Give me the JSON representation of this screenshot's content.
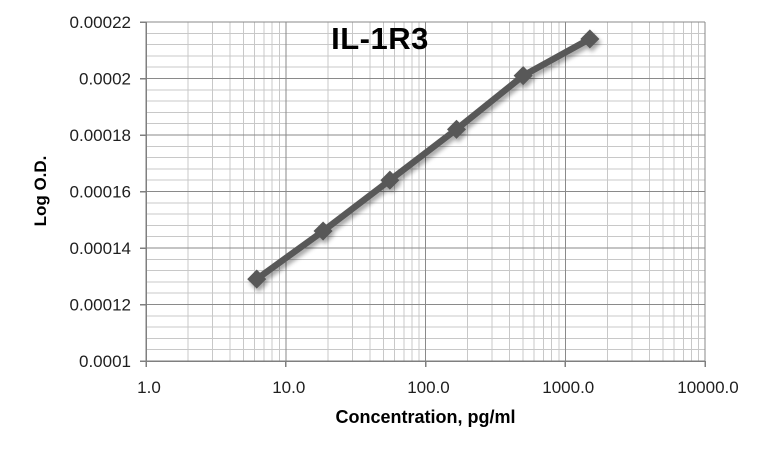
{
  "chart_data": {
    "type": "line",
    "title": "IL-1R3",
    "xlabel": "Concentration, pg/ml",
    "ylabel": "Log O.D.",
    "x_scale": "log",
    "y_scale": "linear",
    "xlim": [
      1.0,
      10000.0
    ],
    "ylim": [
      0.0001,
      0.00022
    ],
    "x_ticks": {
      "values": [
        1,
        10,
        100,
        1000,
        10000
      ],
      "labels": [
        "1.0",
        "10.0",
        "100.0",
        "1000.0",
        "10000.0"
      ]
    },
    "y_ticks": {
      "values": [
        0.0001,
        0.00012,
        0.00014,
        0.00016,
        0.00018,
        0.0002,
        0.00022
      ],
      "labels": [
        "0.0001",
        "0.00012",
        "0.00014",
        "0.00016",
        "0.00018",
        "0.0002",
        "0.00022"
      ]
    },
    "grid": {
      "major": true,
      "minor": true,
      "y_minor_unit": 4e-06,
      "x_minor_mantissas": [
        2,
        3,
        4,
        5,
        6,
        7,
        8,
        9
      ]
    },
    "legend": "none",
    "series": [
      {
        "name": "IL-1R3",
        "marker": "diamond",
        "color": "#595959",
        "x": [
          6.2,
          18.5,
          55.6,
          166.7,
          500,
          1500
        ],
        "y": [
          0.000129,
          0.000146,
          0.000164,
          0.000182,
          0.000201,
          0.000214
        ]
      }
    ]
  },
  "colors": {
    "series": "#595959",
    "grid_minor": "#c8c8c8",
    "grid_major": "#8a8a8a",
    "axis": "#7f7f7f",
    "tick_label": "#1f1f1f",
    "title": "#000000",
    "background": "#ffffff"
  }
}
